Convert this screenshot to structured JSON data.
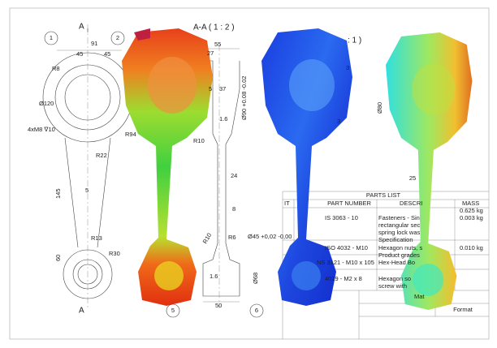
{
  "section_markers": [
    "A",
    "A"
  ],
  "view_titles": [
    "A-A ( 1 : 2 )",
    ": 1 )"
  ],
  "balloons": [
    "1",
    "2",
    "5",
    "6",
    "25"
  ],
  "dimensions": [
    "91",
    "45",
    "45",
    "R8",
    "Ø120",
    "4xM8 ∇10",
    "R22",
    "R94",
    "5",
    "145",
    "R13",
    "R30",
    "60",
    "55",
    "27",
    "5",
    "37",
    "Ø90 +0.08 -0.02",
    "1.6",
    "R10",
    "24",
    "8",
    "R10",
    "R6",
    "Ø45 +0,02 -0,00",
    "1.6",
    "Ø68",
    "50",
    "3",
    "3",
    "Ø80"
  ],
  "parts_list": {
    "title": "PARTS LIST",
    "headers": [
      "IT",
      "PART NUMBER",
      "DESCRI",
      "MASS"
    ],
    "cells": [
      "0.625 kg",
      "IS 3063 - 10",
      "Fasteners - Sin",
      "rectangular sec",
      "spring lock was",
      "Specification",
      "0.003 kg",
      "ISO 4032 - M10",
      "Hexagon nuts, s",
      "Product grades",
      "0.010 kg",
      "NS 3121 - M10 x 105",
      "Hex-Head Bo",
      "4029 - M2 x 8",
      "Hexagon so",
      "screw with"
    ]
  },
  "title_block": [
    "Mat",
    "Format"
  ]
}
